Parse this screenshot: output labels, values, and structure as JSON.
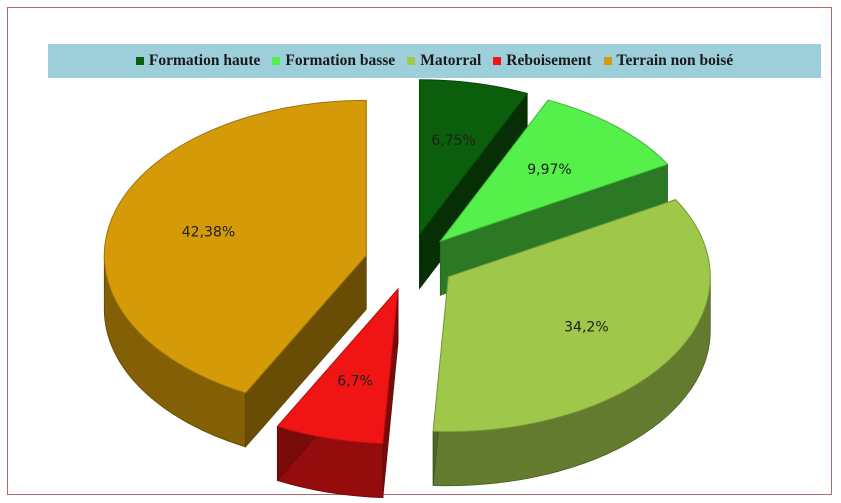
{
  "chart_data": {
    "type": "pie",
    "title": "",
    "legend_position": "top",
    "slices": [
      {
        "label": "Formation haute",
        "value": 6.75,
        "display": "6,75%",
        "color": "#0b5e0b"
      },
      {
        "label": "Formation basse",
        "value": 9.97,
        "display": "9,97%",
        "color": "#55f04a"
      },
      {
        "label": "Matorral",
        "value": 34.2,
        "display": "34,2%",
        "color": "#9fc74a"
      },
      {
        "label": "Reboisement",
        "value": 6.7,
        "display": "6,7%",
        "color": "#f01414"
      },
      {
        "label": "Terrain non boisé",
        "value": 42.38,
        "display": "42,38%",
        "color": "#d49a08"
      }
    ]
  }
}
